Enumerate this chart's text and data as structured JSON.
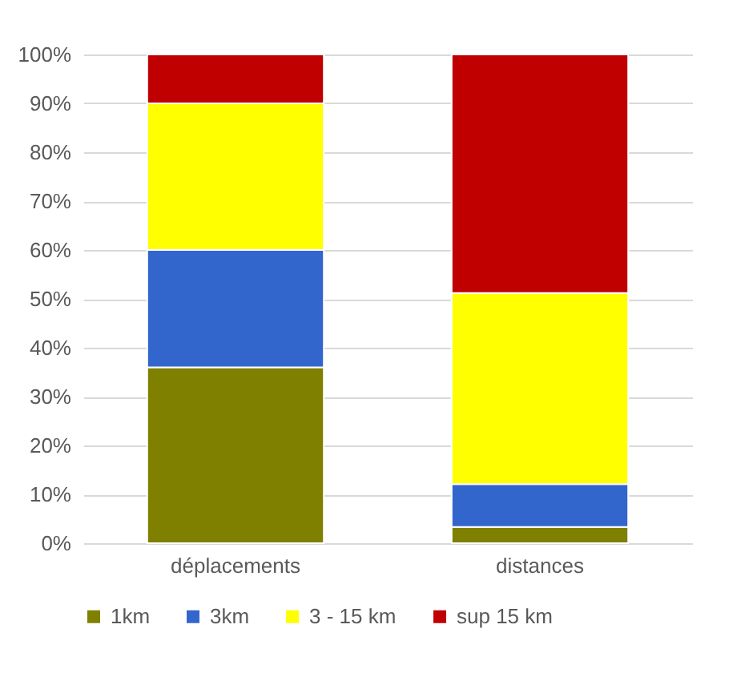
{
  "chart_data": {
    "type": "bar",
    "stacked": true,
    "categories": [
      "déplacements",
      "distances"
    ],
    "series": [
      {
        "name": "1km",
        "color": "#808000",
        "values": [
          36,
          3.3
        ]
      },
      {
        "name": "3km",
        "color": "#3366cc",
        "values": [
          24,
          8.8
        ]
      },
      {
        "name": "3 - 15 km",
        "color": "#ffff00",
        "values": [
          30,
          39.1
        ]
      },
      {
        "name": "sup 15 km",
        "color": "#c00000",
        "values": [
          10,
          48.8
        ]
      }
    ],
    "ylim": [
      0,
      100
    ],
    "yticks": [
      {
        "value": 0,
        "label": "0%"
      },
      {
        "value": 10,
        "label": "10%"
      },
      {
        "value": 20,
        "label": "20%"
      },
      {
        "value": 30,
        "label": "30%"
      },
      {
        "value": 40,
        "label": "40%"
      },
      {
        "value": 50,
        "label": "50%"
      },
      {
        "value": 60,
        "label": "60%"
      },
      {
        "value": 70,
        "label": "70%"
      },
      {
        "value": 80,
        "label": "80%"
      },
      {
        "value": 90,
        "label": "90%"
      },
      {
        "value": 100,
        "label": "100%"
      }
    ],
    "grid": "y",
    "legend": "bottom"
  }
}
